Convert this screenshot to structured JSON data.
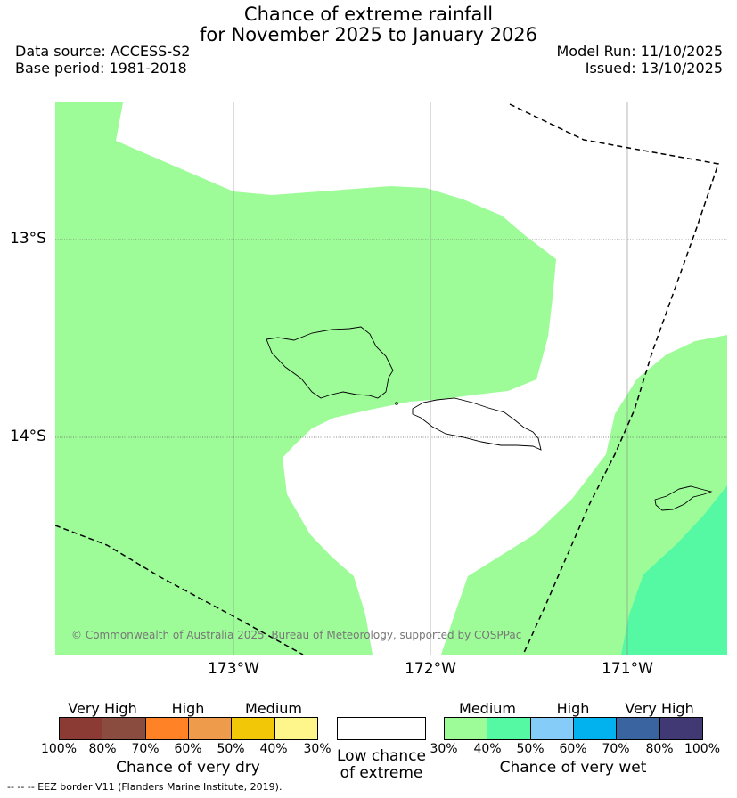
{
  "title": {
    "line1": "Chance of extreme rainfall",
    "line2": "for November 2025 to January 2026"
  },
  "meta": {
    "data_source": "Data source: ACCESS-S2",
    "base_period": "Base period: 1981-2018",
    "model_run": "Model Run: 11/10/2025",
    "issued": "Issued: 13/10/2025"
  },
  "axes": {
    "lat_labels": [
      "13°S",
      "14°S"
    ],
    "lon_labels": [
      "173°W",
      "172°W",
      "171°W"
    ]
  },
  "copyright": "© Commonwealth of Australia 2025, Bureau of Meteorology, supported by COSPPac",
  "legend": {
    "dry": {
      "title": "Chance of very dry",
      "categories": [
        "Very High",
        "High",
        "Medium"
      ],
      "ticks": [
        "100%",
        "80%",
        "70%",
        "60%",
        "50%",
        "40%",
        "30%"
      ],
      "colors": [
        "#8b3a34",
        "#8a4c3e",
        "#ff8226",
        "#ee9b4b",
        "#f1c708",
        "#fef68a"
      ]
    },
    "low": {
      "title_line1": "Low chance",
      "title_line2": "of extreme",
      "color": "#ffffff"
    },
    "wet": {
      "title": "Chance of very wet",
      "categories": [
        "Medium",
        "High",
        "Very High"
      ],
      "ticks": [
        "30%",
        "40%",
        "50%",
        "60%",
        "70%",
        "80%",
        "100%"
      ],
      "colors": [
        "#9dfc98",
        "#56f9a3",
        "#86ccf9",
        "#01b2ef",
        "#39649f",
        "#413973"
      ]
    }
  },
  "footnote": "--  --  -- EEZ border V11 (Flanders Marine Institute, 2019)."
}
